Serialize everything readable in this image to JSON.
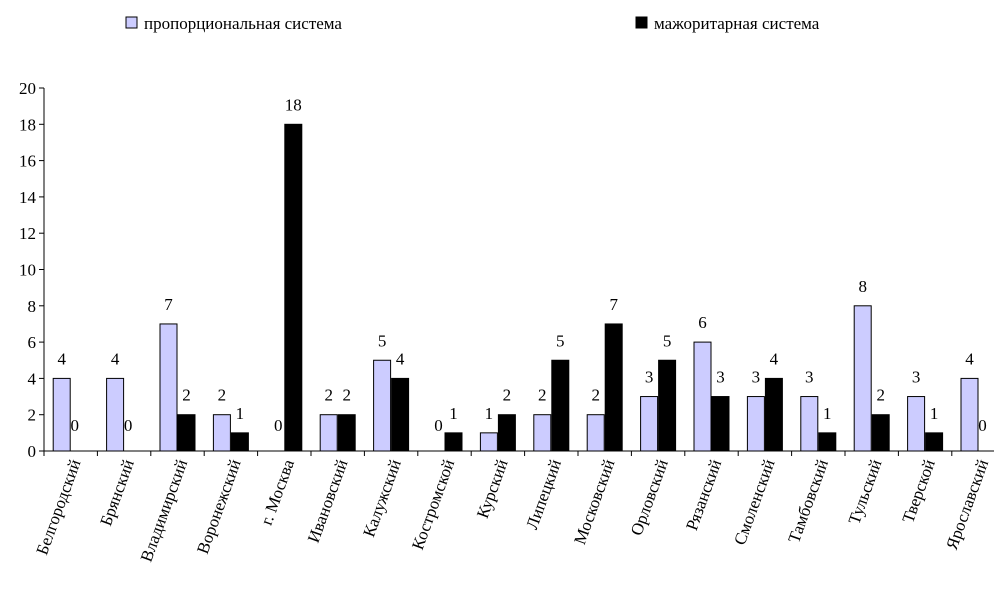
{
  "chart_data": {
    "type": "bar",
    "categories": [
      "Белгородский",
      "Брянский",
      "Владимирский",
      "Воронежский",
      "г. Москва",
      "Ивановский",
      "Калужский",
      "Костромской",
      "Курский",
      "Липецкий",
      "Московский",
      "Орловский",
      "Рязанский",
      "Смоленский",
      "Тамбовский",
      "Тульский",
      "Тверской",
      "Ярославский"
    ],
    "series": [
      {
        "name": "пропорциональная система",
        "color": "#ccccff",
        "values": [
          4,
          4,
          7,
          2,
          0,
          2,
          5,
          0,
          1,
          2,
          2,
          3,
          6,
          3,
          3,
          8,
          3,
          4
        ],
        "labels": [
          "4",
          "4",
          "7",
          "2",
          "0",
          "2",
          "5",
          "0",
          "1",
          "2",
          "2",
          "3",
          "6",
          "3",
          "3",
          "8",
          "3",
          "4"
        ]
      },
      {
        "name": "мажоритарная система",
        "color": "#000000",
        "values": [
          0,
          null,
          2,
          1,
          18,
          2,
          4,
          1,
          2,
          5,
          7,
          5,
          3,
          4,
          1,
          2,
          1,
          0
        ],
        "labels": [
          "0",
          "0",
          "2",
          "1",
          "18",
          "2",
          "4",
          "1",
          "2",
          "5",
          "7",
          "5",
          "3",
          "4",
          "1",
          "2",
          "1",
          "0"
        ]
      }
    ],
    "yticks": [
      "0",
      "2",
      "4",
      "6",
      "8",
      "10",
      "12",
      "14",
      "16",
      "18",
      "20"
    ],
    "ylim": [
      0,
      20
    ],
    "grid": false,
    "legend_position": "top"
  }
}
